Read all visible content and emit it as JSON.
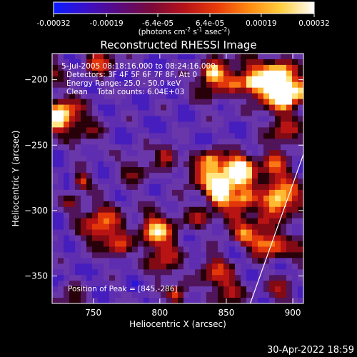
{
  "colorbar": {
    "ticks": [
      "-0.00032",
      "-0.00019",
      "-6.4e-05",
      "6.4e-05",
      "0.00019",
      "0.00032"
    ],
    "tick_values": [
      -0.00032,
      -0.00019,
      -6.4e-05,
      6.4e-05,
      0.00019,
      0.00032
    ],
    "range": [
      -0.00032,
      0.00032
    ],
    "unit_main": "(photons cm",
    "unit_sup1": "-2",
    "unit_mid1": " s",
    "unit_sup2": "-1",
    "unit_mid2": " asec",
    "unit_sup3": "-2",
    "unit_end": ")",
    "colors": [
      "#0a1cff",
      "#3a10c8",
      "#5a0a80",
      "#7a0a3a",
      "#b5121a",
      "#e83a0a",
      "#ff8a10",
      "#ffd040",
      "#ffffff"
    ]
  },
  "chart_data": {
    "type": "heatmap",
    "title": "Reconstructed RHESSI Image",
    "xlabel": "Heliocentric X (arcsec)",
    "ylabel": "Heliocentric Y (arcsec)",
    "xlim": [
      719,
      908
    ],
    "ylim": [
      -371,
      -180
    ],
    "xticks": [
      750,
      800,
      850,
      900
    ],
    "yticks": [
      -200,
      -250,
      -300,
      -350
    ],
    "xtick_labels": [
      "750",
      "800",
      "850",
      "900"
    ],
    "ytick_labels": [
      "−200",
      "−250",
      "−300",
      "−350"
    ],
    "annotations": [
      "5-Jul-2005 08:18:16.000 to 08:24:16.000",
      "Detectors: 3F 4F 5F 6F 7F 8F, Att 0",
      "Energy Range: 25.0 - 50.0 keV",
      "Clean    Total counts: 6.04E+03"
    ],
    "peak_label": "Position of Peak = [845,-286]",
    "peak": [
      845,
      -286
    ],
    "limb_line": [
      [
        868,
        -371
      ],
      [
        908,
        -257
      ]
    ]
  },
  "footer_timestamp": "30-Apr-2022 18:59"
}
